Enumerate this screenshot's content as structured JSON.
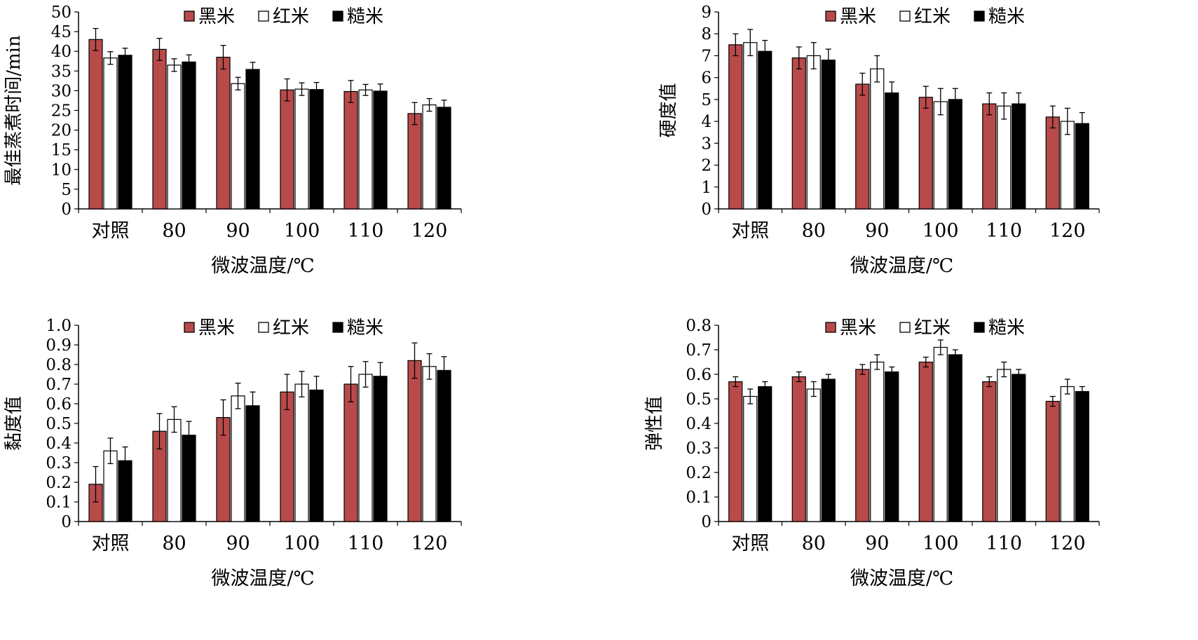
{
  "chart_data": [
    {
      "type": "bar",
      "ylabel": "最佳蒸煮时间/min",
      "xlabel": "微波温度/℃",
      "categories": [
        "对照",
        "80",
        "90",
        "100",
        "110",
        "120"
      ],
      "ylim": [
        0,
        50
      ],
      "yticks": [
        "0",
        "5",
        "10",
        "15",
        "20",
        "25",
        "30",
        "35",
        "40",
        "45",
        "50"
      ],
      "legend_position": "top",
      "series": [
        {
          "name": "黑米",
          "color": "#b94a4a",
          "values": [
            43,
            40.5,
            38.5,
            30.2,
            29.8,
            24.2
          ],
          "errors": [
            2.8,
            2.8,
            3.0,
            2.8,
            2.8,
            2.8
          ]
        },
        {
          "name": "红米",
          "color": "#ffffff",
          "values": [
            38.3,
            36.5,
            31.8,
            30.4,
            30.2,
            26.4
          ],
          "errors": [
            1.6,
            1.6,
            1.6,
            1.6,
            1.4,
            1.6
          ]
        },
        {
          "name": "糙米",
          "color": "#000000",
          "values": [
            39,
            37.3,
            35.4,
            30.3,
            29.9,
            25.8
          ],
          "errors": [
            1.8,
            1.8,
            1.8,
            1.8,
            1.8,
            1.8
          ]
        }
      ]
    },
    {
      "type": "bar",
      "ylabel": "硬度值",
      "xlabel": "微波温度/℃",
      "categories": [
        "对照",
        "80",
        "90",
        "100",
        "110",
        "120"
      ],
      "ylim": [
        0,
        9
      ],
      "yticks": [
        "0",
        "1",
        "2",
        "3",
        "4",
        "5",
        "6",
        "7",
        "8",
        "9"
      ],
      "legend_position": "top",
      "series": [
        {
          "name": "黑米",
          "color": "#b94a4a",
          "values": [
            7.5,
            6.9,
            5.7,
            5.1,
            4.8,
            4.2
          ],
          "errors": [
            0.5,
            0.5,
            0.5,
            0.5,
            0.5,
            0.5
          ]
        },
        {
          "name": "红米",
          "color": "#ffffff",
          "values": [
            7.6,
            7.0,
            6.4,
            4.9,
            4.7,
            4.0
          ],
          "errors": [
            0.6,
            0.6,
            0.6,
            0.6,
            0.6,
            0.6
          ]
        },
        {
          "name": "糙米",
          "color": "#000000",
          "values": [
            7.2,
            6.8,
            5.3,
            5.0,
            4.8,
            3.9
          ],
          "errors": [
            0.5,
            0.5,
            0.5,
            0.5,
            0.5,
            0.5
          ]
        }
      ]
    },
    {
      "type": "bar",
      "ylabel": "黏度值",
      "xlabel": "微波温度/℃",
      "categories": [
        "对照",
        "80",
        "90",
        "100",
        "110",
        "120"
      ],
      "ylim": [
        0,
        1.0
      ],
      "yticks": [
        "0",
        "0.1",
        "0.2",
        "0.3",
        "0.4",
        "0.5",
        "0.6",
        "0.7",
        "0.8",
        "0.9",
        "1.0"
      ],
      "legend_position": "top",
      "series": [
        {
          "name": "黑米",
          "color": "#b94a4a",
          "values": [
            0.19,
            0.46,
            0.53,
            0.66,
            0.7,
            0.82
          ],
          "errors": [
            0.09,
            0.09,
            0.09,
            0.09,
            0.09,
            0.09
          ]
        },
        {
          "name": "红米",
          "color": "#ffffff",
          "values": [
            0.36,
            0.52,
            0.64,
            0.7,
            0.75,
            0.79
          ],
          "errors": [
            0.065,
            0.065,
            0.065,
            0.065,
            0.065,
            0.065
          ]
        },
        {
          "name": "糙米",
          "color": "#000000",
          "values": [
            0.31,
            0.44,
            0.59,
            0.67,
            0.74,
            0.77
          ],
          "errors": [
            0.07,
            0.07,
            0.07,
            0.07,
            0.07,
            0.07
          ]
        }
      ]
    },
    {
      "type": "bar",
      "ylabel": "弹性值",
      "xlabel": "微波温度/℃",
      "categories": [
        "对照",
        "80",
        "90",
        "100",
        "110",
        "120"
      ],
      "ylim": [
        0,
        0.8
      ],
      "yticks": [
        "0",
        "0.1",
        "0.2",
        "0.3",
        "0.4",
        "0.5",
        "0.6",
        "0.7",
        "0.8"
      ],
      "legend_position": "top",
      "series": [
        {
          "name": "黑米",
          "color": "#b94a4a",
          "values": [
            0.57,
            0.59,
            0.62,
            0.65,
            0.57,
            0.49
          ],
          "errors": [
            0.02,
            0.02,
            0.02,
            0.02,
            0.02,
            0.02
          ]
        },
        {
          "name": "红米",
          "color": "#ffffff",
          "values": [
            0.51,
            0.54,
            0.65,
            0.71,
            0.62,
            0.55
          ],
          "errors": [
            0.03,
            0.03,
            0.03,
            0.03,
            0.03,
            0.03
          ]
        },
        {
          "name": "糙米",
          "color": "#000000",
          "values": [
            0.55,
            0.58,
            0.61,
            0.68,
            0.6,
            0.53
          ],
          "errors": [
            0.02,
            0.02,
            0.02,
            0.02,
            0.02,
            0.02
          ]
        }
      ]
    }
  ]
}
